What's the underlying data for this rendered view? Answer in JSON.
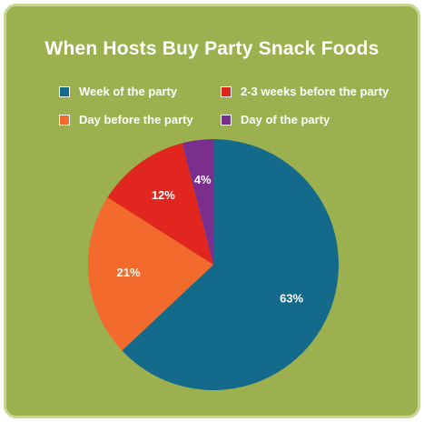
{
  "colors": {
    "background": "#9db04f",
    "card_border": "#c9d68f"
  },
  "chart_data": {
    "type": "pie",
    "title": "When Hosts Buy Party Snack Foods",
    "categories": [
      "Week of the party",
      "Day before the party",
      "2-3 weeks before the party",
      "Day of the party"
    ],
    "values": [
      63,
      21,
      12,
      4
    ],
    "data_labels": [
      "63%",
      "21%",
      "12%",
      "4%"
    ],
    "colors": [
      "#136a8a",
      "#f26a2c",
      "#e0261f",
      "#7a2f8f"
    ],
    "legend": {
      "placement": "top",
      "items": [
        {
          "label": "Week of the party",
          "color": "#136a8a"
        },
        {
          "label": "2-3 weeks before the party",
          "color": "#e0261f"
        },
        {
          "label": "Day before the party",
          "color": "#f26a2c"
        },
        {
          "label": "Day of the party",
          "color": "#7a2f8f"
        }
      ]
    }
  }
}
